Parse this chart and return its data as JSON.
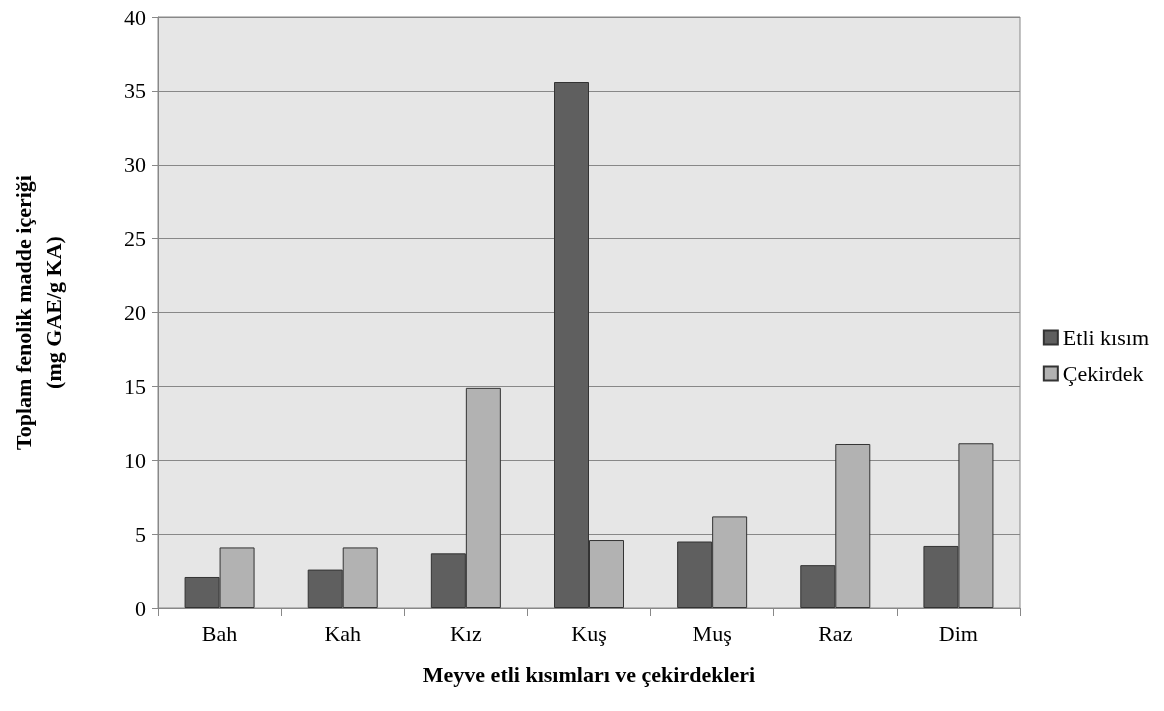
{
  "chart_data": {
    "type": "bar",
    "xlabel": "Meyve etli kısımları ve çekirdekleri",
    "ylabel": "Toplam fenolik madde içeriği\n(mg GAE/g KA)",
    "categories": [
      "Bah",
      "Kah",
      "Kız",
      "Kuş",
      "Muş",
      "Raz",
      "Dim"
    ],
    "series": [
      {
        "name": "Etli kısım",
        "color": "#5f5f5f",
        "values": [
          2.1,
          2.6,
          3.7,
          35.6,
          4.5,
          2.9,
          4.2
        ]
      },
      {
        "name": "Çekirdek",
        "color": "#b2b2b2",
        "values": [
          4.1,
          4.1,
          14.9,
          4.6,
          6.2,
          11.1,
          11.15
        ]
      }
    ],
    "ylim": [
      0,
      40
    ],
    "yticks": [
      0,
      5,
      10,
      15,
      20,
      25,
      30,
      35,
      40
    ],
    "grid": "y",
    "legend": "right"
  }
}
